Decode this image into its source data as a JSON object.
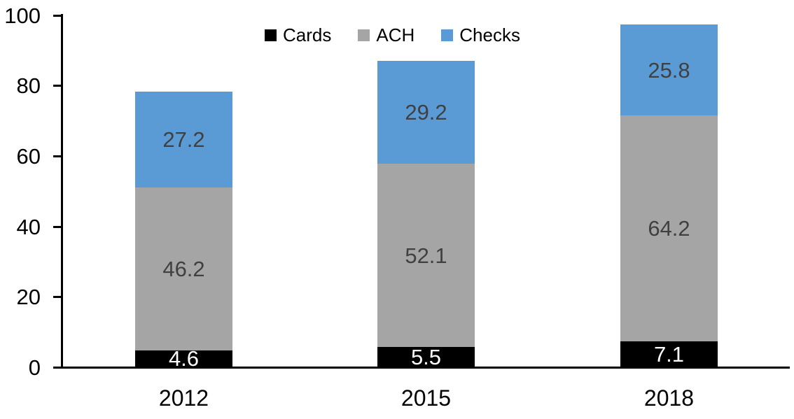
{
  "chart_data": {
    "type": "bar",
    "stacked": true,
    "title": "",
    "categories": [
      "2012",
      "2015",
      "2018"
    ],
    "series": [
      {
        "name": "Cards",
        "values": [
          4.6,
          5.5,
          7.1
        ],
        "color": "#000000",
        "label_color": "#ffffff"
      },
      {
        "name": "ACH",
        "values": [
          46.2,
          52.1,
          64.2
        ],
        "color": "#a5a5a5",
        "label_color": "#404040"
      },
      {
        "name": "Checks",
        "values": [
          27.2,
          29.2,
          25.8
        ],
        "color": "#5b9bd5",
        "label_color": "#404040"
      }
    ],
    "totals": [
      78.0,
      86.8,
      97.1
    ],
    "ylim": [
      0,
      100
    ],
    "yticks": [
      0,
      20,
      40,
      60,
      80,
      100
    ],
    "xlabel": "",
    "ylabel": "",
    "grid": false,
    "legend_position": "top-center",
    "axis_color": "#000000",
    "tick_label_color": "#000000"
  }
}
